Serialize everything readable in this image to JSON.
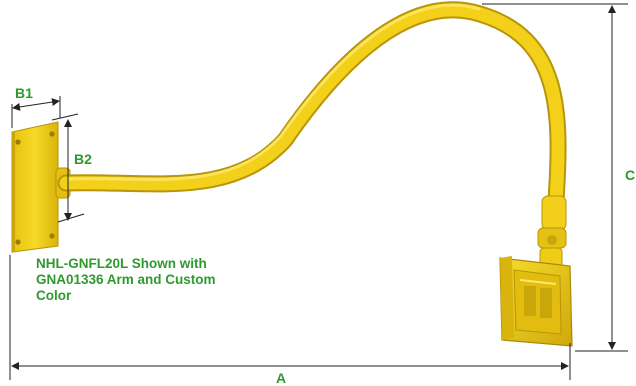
{
  "dimensions": {
    "a": "A",
    "b1": "B1",
    "b2": "B2",
    "c": "C"
  },
  "caption": {
    "lines": [
      "NHL-GNFL20L Shown with",
      "GNA01336 Arm and Custom",
      "Color"
    ]
  },
  "colors": {
    "label_green": "#2e9a2e",
    "fixture_yellow": "#f3d019",
    "fixture_shadow": "#c9a60a",
    "fixture_highlight": "#fbe96a",
    "dimension_line": "#222222"
  }
}
